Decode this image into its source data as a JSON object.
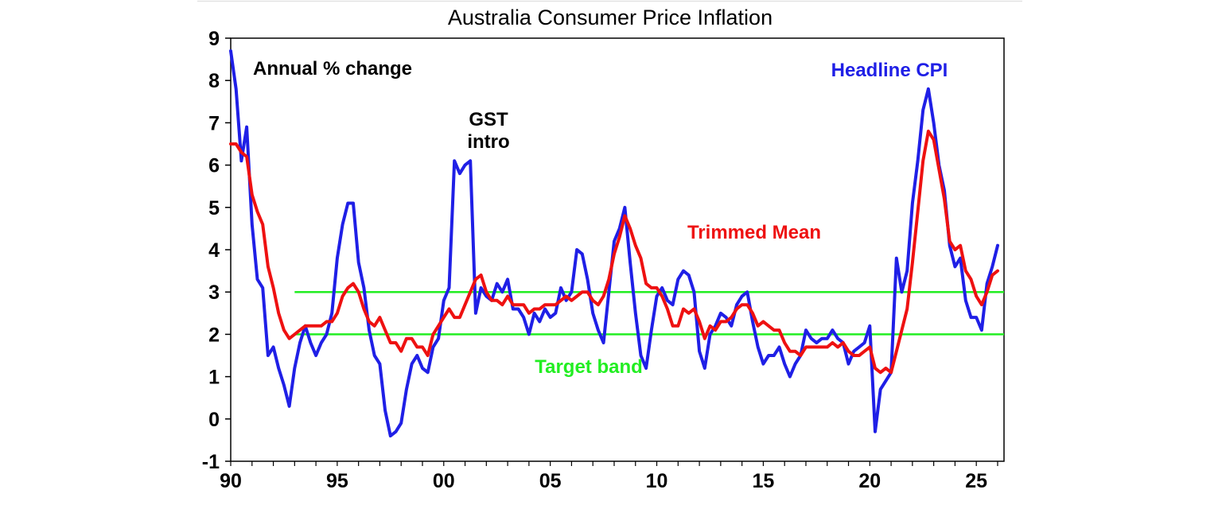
{
  "chart_data": {
    "type": "line",
    "title": "Australia Consumer Price Inflation",
    "xlabel": "",
    "ylabel": "",
    "ylim": [
      -1,
      9
    ],
    "xlim": [
      1990,
      2026.3
    ],
    "grid": false,
    "x_tick_labels": [
      "90",
      "95",
      "00",
      "05",
      "10",
      "15",
      "20",
      "25"
    ],
    "x_tick_values": [
      1990,
      1995,
      2000,
      2005,
      2010,
      2015,
      2020,
      2025
    ],
    "y_ticks": [
      -1,
      0,
      1,
      2,
      3,
      4,
      5,
      6,
      7,
      8,
      9
    ],
    "annotations": {
      "units": "Annual % change",
      "gst_line1": "GST",
      "gst_line2": "intro",
      "headline_label": "Headline CPI",
      "trimmed_label": "Trimmed Mean",
      "band_label": "Target band"
    },
    "target_band": {
      "lower": 2,
      "upper": 3,
      "start": 1993,
      "end": 2026.3,
      "color": "#22ee22"
    },
    "series": [
      {
        "name": "Headline CPI",
        "color": "#1f1fe6",
        "points": [
          [
            1990.0,
            8.7
          ],
          [
            1990.25,
            7.8
          ],
          [
            1990.5,
            6.1
          ],
          [
            1990.75,
            6.9
          ],
          [
            1991.0,
            4.6
          ],
          [
            1991.25,
            3.3
          ],
          [
            1991.5,
            3.1
          ],
          [
            1991.75,
            1.5
          ],
          [
            1992.0,
            1.7
          ],
          [
            1992.25,
            1.2
          ],
          [
            1992.5,
            0.8
          ],
          [
            1992.75,
            0.3
          ],
          [
            1993.0,
            1.2
          ],
          [
            1993.25,
            1.8
          ],
          [
            1993.5,
            2.2
          ],
          [
            1993.75,
            1.8
          ],
          [
            1994.0,
            1.5
          ],
          [
            1994.25,
            1.8
          ],
          [
            1994.5,
            2.0
          ],
          [
            1994.75,
            2.5
          ],
          [
            1995.0,
            3.8
          ],
          [
            1995.25,
            4.6
          ],
          [
            1995.5,
            5.1
          ],
          [
            1995.75,
            5.1
          ],
          [
            1996.0,
            3.7
          ],
          [
            1996.25,
            3.1
          ],
          [
            1996.5,
            2.1
          ],
          [
            1996.75,
            1.5
          ],
          [
            1997.0,
            1.3
          ],
          [
            1997.25,
            0.2
          ],
          [
            1997.5,
            -0.4
          ],
          [
            1997.75,
            -0.3
          ],
          [
            1998.0,
            -0.1
          ],
          [
            1998.25,
            0.7
          ],
          [
            1998.5,
            1.3
          ],
          [
            1998.75,
            1.5
          ],
          [
            1999.0,
            1.2
          ],
          [
            1999.25,
            1.1
          ],
          [
            1999.5,
            1.7
          ],
          [
            1999.75,
            1.9
          ],
          [
            2000.0,
            2.8
          ],
          [
            2000.25,
            3.1
          ],
          [
            2000.5,
            6.1
          ],
          [
            2000.75,
            5.8
          ],
          [
            2001.0,
            6.0
          ],
          [
            2001.25,
            6.1
          ],
          [
            2001.5,
            2.5
          ],
          [
            2001.75,
            3.1
          ],
          [
            2002.0,
            2.9
          ],
          [
            2002.25,
            2.8
          ],
          [
            2002.5,
            3.2
          ],
          [
            2002.75,
            3.0
          ],
          [
            2003.0,
            3.3
          ],
          [
            2003.25,
            2.6
          ],
          [
            2003.5,
            2.6
          ],
          [
            2003.75,
            2.4
          ],
          [
            2004.0,
            2.0
          ],
          [
            2004.25,
            2.5
          ],
          [
            2004.5,
            2.3
          ],
          [
            2004.75,
            2.6
          ],
          [
            2005.0,
            2.4
          ],
          [
            2005.25,
            2.5
          ],
          [
            2005.5,
            3.1
          ],
          [
            2005.75,
            2.8
          ],
          [
            2006.0,
            3.0
          ],
          [
            2006.25,
            4.0
          ],
          [
            2006.5,
            3.9
          ],
          [
            2006.75,
            3.3
          ],
          [
            2007.0,
            2.5
          ],
          [
            2007.25,
            2.1
          ],
          [
            2007.5,
            1.8
          ],
          [
            2007.75,
            3.0
          ],
          [
            2008.0,
            4.2
          ],
          [
            2008.25,
            4.5
          ],
          [
            2008.5,
            5.0
          ],
          [
            2008.75,
            3.7
          ],
          [
            2009.0,
            2.5
          ],
          [
            2009.25,
            1.5
          ],
          [
            2009.5,
            1.2
          ],
          [
            2009.75,
            2.1
          ],
          [
            2010.0,
            2.9
          ],
          [
            2010.25,
            3.1
          ],
          [
            2010.5,
            2.8
          ],
          [
            2010.75,
            2.7
          ],
          [
            2011.0,
            3.3
          ],
          [
            2011.25,
            3.5
          ],
          [
            2011.5,
            3.4
          ],
          [
            2011.75,
            3.0
          ],
          [
            2012.0,
            1.6
          ],
          [
            2012.25,
            1.2
          ],
          [
            2012.5,
            2.0
          ],
          [
            2012.75,
            2.2
          ],
          [
            2013.0,
            2.5
          ],
          [
            2013.25,
            2.4
          ],
          [
            2013.5,
            2.2
          ],
          [
            2013.75,
            2.7
          ],
          [
            2014.0,
            2.9
          ],
          [
            2014.25,
            3.0
          ],
          [
            2014.5,
            2.3
          ],
          [
            2014.75,
            1.7
          ],
          [
            2015.0,
            1.3
          ],
          [
            2015.25,
            1.5
          ],
          [
            2015.5,
            1.5
          ],
          [
            2015.75,
            1.7
          ],
          [
            2016.0,
            1.3
          ],
          [
            2016.25,
            1.0
          ],
          [
            2016.5,
            1.3
          ],
          [
            2016.75,
            1.5
          ],
          [
            2017.0,
            2.1
          ],
          [
            2017.25,
            1.9
          ],
          [
            2017.5,
            1.8
          ],
          [
            2017.75,
            1.9
          ],
          [
            2018.0,
            1.9
          ],
          [
            2018.25,
            2.1
          ],
          [
            2018.5,
            1.9
          ],
          [
            2018.75,
            1.8
          ],
          [
            2019.0,
            1.3
          ],
          [
            2019.25,
            1.6
          ],
          [
            2019.5,
            1.7
          ],
          [
            2019.75,
            1.8
          ],
          [
            2020.0,
            2.2
          ],
          [
            2020.25,
            -0.3
          ],
          [
            2020.5,
            0.7
          ],
          [
            2020.75,
            0.9
          ],
          [
            2021.0,
            1.1
          ],
          [
            2021.25,
            3.8
          ],
          [
            2021.5,
            3.0
          ],
          [
            2021.75,
            3.5
          ],
          [
            2022.0,
            5.1
          ],
          [
            2022.25,
            6.1
          ],
          [
            2022.5,
            7.3
          ],
          [
            2022.75,
            7.8
          ],
          [
            2023.0,
            7.0
          ],
          [
            2023.25,
            6.0
          ],
          [
            2023.5,
            5.4
          ],
          [
            2023.75,
            4.1
          ],
          [
            2024.0,
            3.6
          ],
          [
            2024.25,
            3.8
          ],
          [
            2024.5,
            2.8
          ],
          [
            2024.75,
            2.4
          ],
          [
            2025.0,
            2.4
          ],
          [
            2025.25,
            2.1
          ],
          [
            2025.5,
            3.2
          ],
          [
            2025.75,
            3.6
          ],
          [
            2026.0,
            4.1
          ]
        ]
      },
      {
        "name": "Trimmed Mean",
        "color": "#ee1111",
        "points": [
          [
            1990.0,
            6.5
          ],
          [
            1990.25,
            6.5
          ],
          [
            1990.5,
            6.3
          ],
          [
            1990.75,
            6.2
          ],
          [
            1991.0,
            5.3
          ],
          [
            1991.25,
            4.9
          ],
          [
            1991.5,
            4.6
          ],
          [
            1991.75,
            3.6
          ],
          [
            1992.0,
            3.1
          ],
          [
            1992.25,
            2.5
          ],
          [
            1992.5,
            2.1
          ],
          [
            1992.75,
            1.9
          ],
          [
            1993.0,
            2.0
          ],
          [
            1993.25,
            2.1
          ],
          [
            1993.5,
            2.2
          ],
          [
            1993.75,
            2.2
          ],
          [
            1994.0,
            2.2
          ],
          [
            1994.25,
            2.2
          ],
          [
            1994.5,
            2.3
          ],
          [
            1994.75,
            2.3
          ],
          [
            1995.0,
            2.5
          ],
          [
            1995.25,
            2.9
          ],
          [
            1995.5,
            3.1
          ],
          [
            1995.75,
            3.2
          ],
          [
            1996.0,
            3.0
          ],
          [
            1996.25,
            2.6
          ],
          [
            1996.5,
            2.3
          ],
          [
            1996.75,
            2.2
          ],
          [
            1997.0,
            2.4
          ],
          [
            1997.25,
            2.1
          ],
          [
            1997.5,
            1.8
          ],
          [
            1997.75,
            1.8
          ],
          [
            1998.0,
            1.6
          ],
          [
            1998.25,
            1.9
          ],
          [
            1998.5,
            1.9
          ],
          [
            1998.75,
            1.7
          ],
          [
            1999.0,
            1.7
          ],
          [
            1999.25,
            1.5
          ],
          [
            1999.5,
            2.0
          ],
          [
            1999.75,
            2.2
          ],
          [
            2000.0,
            2.4
          ],
          [
            2000.25,
            2.6
          ],
          [
            2000.5,
            2.4
          ],
          [
            2000.75,
            2.4
          ],
          [
            2001.0,
            2.7
          ],
          [
            2001.25,
            3.0
          ],
          [
            2001.5,
            3.3
          ],
          [
            2001.75,
            3.4
          ],
          [
            2002.0,
            3.0
          ],
          [
            2002.25,
            2.8
          ],
          [
            2002.5,
            2.8
          ],
          [
            2002.75,
            2.7
          ],
          [
            2003.0,
            2.9
          ],
          [
            2003.25,
            2.7
          ],
          [
            2003.5,
            2.7
          ],
          [
            2003.75,
            2.7
          ],
          [
            2004.0,
            2.5
          ],
          [
            2004.25,
            2.6
          ],
          [
            2004.5,
            2.6
          ],
          [
            2004.75,
            2.7
          ],
          [
            2005.0,
            2.7
          ],
          [
            2005.25,
            2.7
          ],
          [
            2005.5,
            2.8
          ],
          [
            2005.75,
            2.9
          ],
          [
            2006.0,
            2.8
          ],
          [
            2006.25,
            2.9
          ],
          [
            2006.5,
            3.0
          ],
          [
            2006.75,
            3.0
          ],
          [
            2007.0,
            2.8
          ],
          [
            2007.25,
            2.7
          ],
          [
            2007.5,
            2.9
          ],
          [
            2007.75,
            3.3
          ],
          [
            2008.0,
            3.9
          ],
          [
            2008.25,
            4.3
          ],
          [
            2008.5,
            4.8
          ],
          [
            2008.75,
            4.5
          ],
          [
            2009.0,
            4.1
          ],
          [
            2009.25,
            3.8
          ],
          [
            2009.5,
            3.2
          ],
          [
            2009.75,
            3.1
          ],
          [
            2010.0,
            3.1
          ],
          [
            2010.25,
            2.9
          ],
          [
            2010.5,
            2.6
          ],
          [
            2010.75,
            2.2
          ],
          [
            2011.0,
            2.2
          ],
          [
            2011.25,
            2.6
          ],
          [
            2011.5,
            2.5
          ],
          [
            2011.75,
            2.6
          ],
          [
            2012.0,
            2.3
          ],
          [
            2012.25,
            1.9
          ],
          [
            2012.5,
            2.2
          ],
          [
            2012.75,
            2.1
          ],
          [
            2013.0,
            2.3
          ],
          [
            2013.25,
            2.3
          ],
          [
            2013.5,
            2.4
          ],
          [
            2013.75,
            2.6
          ],
          [
            2014.0,
            2.7
          ],
          [
            2014.25,
            2.7
          ],
          [
            2014.5,
            2.5
          ],
          [
            2014.75,
            2.2
          ],
          [
            2015.0,
            2.3
          ],
          [
            2015.25,
            2.2
          ],
          [
            2015.5,
            2.1
          ],
          [
            2015.75,
            2.1
          ],
          [
            2016.0,
            1.8
          ],
          [
            2016.25,
            1.6
          ],
          [
            2016.5,
            1.6
          ],
          [
            2016.75,
            1.5
          ],
          [
            2017.0,
            1.7
          ],
          [
            2017.25,
            1.7
          ],
          [
            2017.5,
            1.7
          ],
          [
            2017.75,
            1.7
          ],
          [
            2018.0,
            1.7
          ],
          [
            2018.25,
            1.8
          ],
          [
            2018.5,
            1.7
          ],
          [
            2018.75,
            1.8
          ],
          [
            2019.0,
            1.6
          ],
          [
            2019.25,
            1.5
          ],
          [
            2019.5,
            1.5
          ],
          [
            2019.75,
            1.6
          ],
          [
            2020.0,
            1.7
          ],
          [
            2020.25,
            1.2
          ],
          [
            2020.5,
            1.1
          ],
          [
            2020.75,
            1.2
          ],
          [
            2021.0,
            1.1
          ],
          [
            2021.25,
            1.6
          ],
          [
            2021.5,
            2.1
          ],
          [
            2021.75,
            2.6
          ],
          [
            2022.0,
            3.7
          ],
          [
            2022.25,
            4.9
          ],
          [
            2022.5,
            6.1
          ],
          [
            2022.75,
            6.8
          ],
          [
            2023.0,
            6.6
          ],
          [
            2023.25,
            5.9
          ],
          [
            2023.5,
            5.2
          ],
          [
            2023.75,
            4.2
          ],
          [
            2024.0,
            4.0
          ],
          [
            2024.25,
            4.1
          ],
          [
            2024.5,
            3.5
          ],
          [
            2024.75,
            3.3
          ],
          [
            2025.0,
            2.9
          ],
          [
            2025.25,
            2.7
          ],
          [
            2025.5,
            3.0
          ],
          [
            2025.75,
            3.4
          ],
          [
            2026.0,
            3.5
          ]
        ]
      }
    ]
  }
}
